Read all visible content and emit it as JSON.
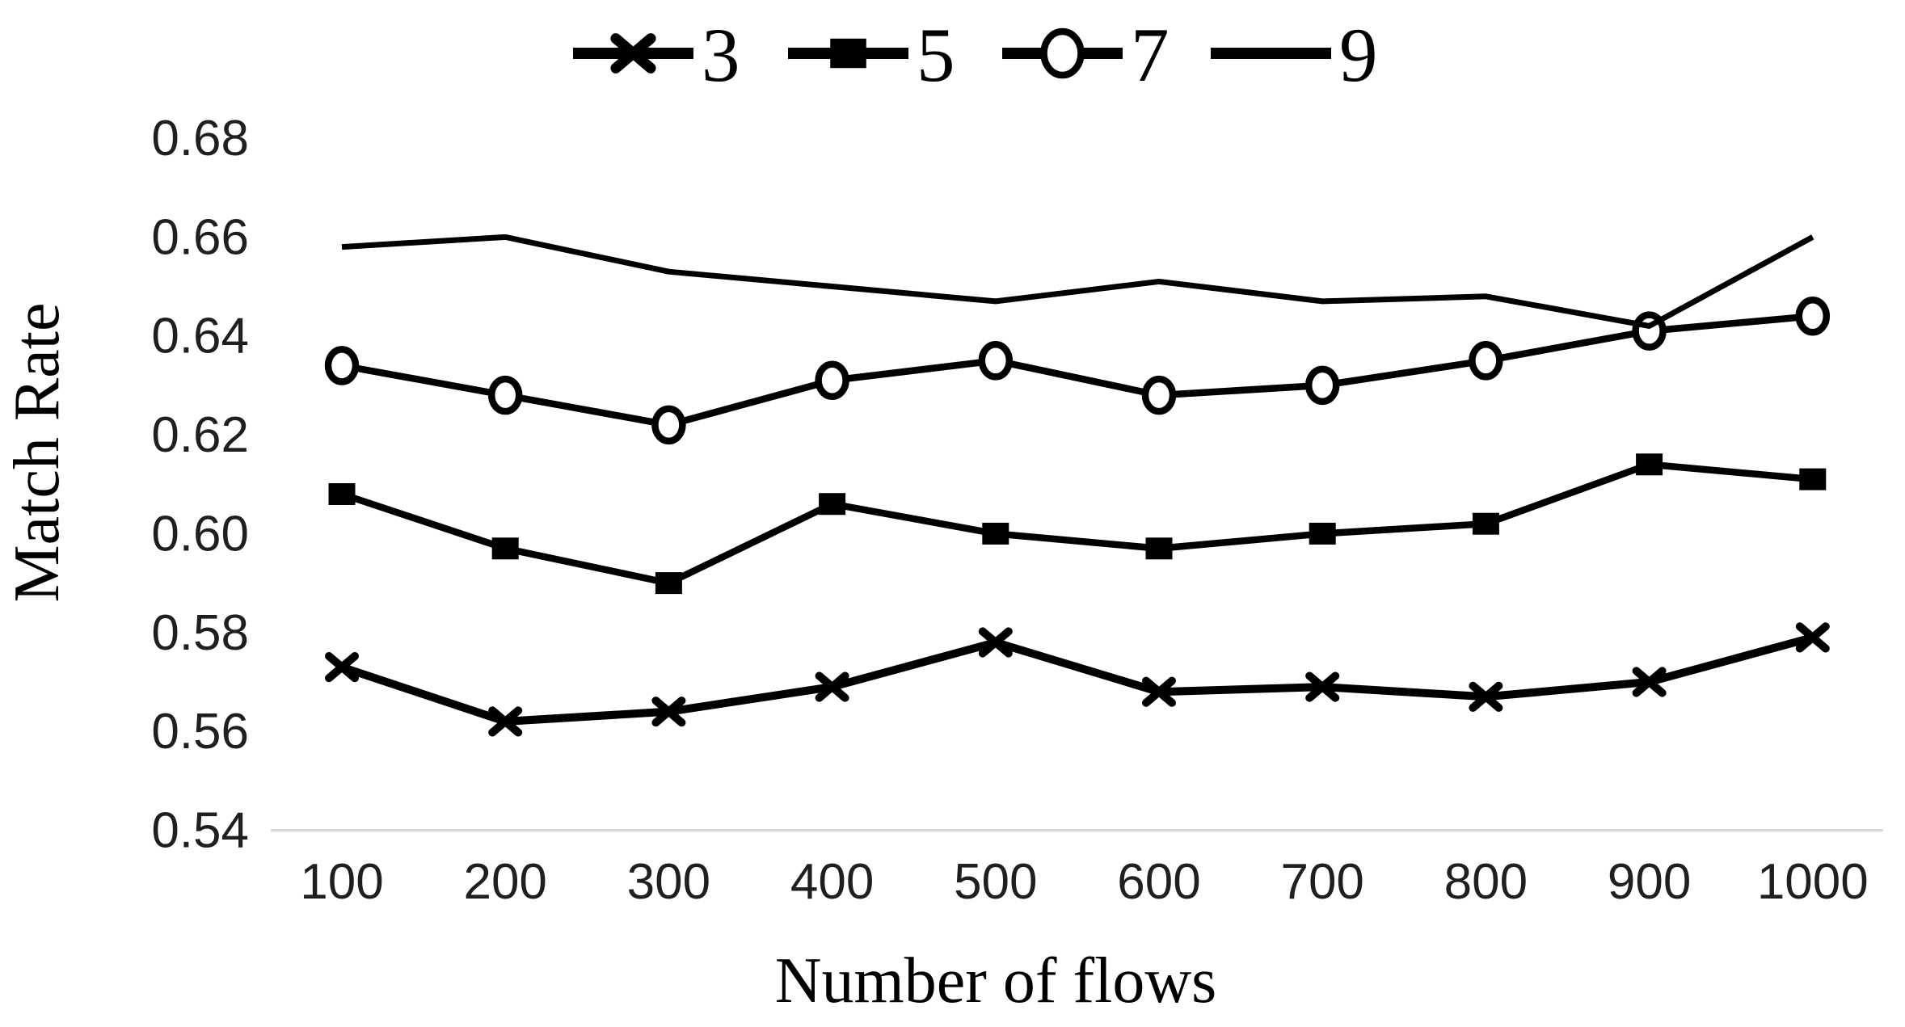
{
  "chart_data": {
    "type": "line",
    "title": "",
    "xlabel": "Number of flows",
    "ylabel": "Match Rate",
    "x": [
      100,
      200,
      300,
      400,
      500,
      600,
      700,
      800,
      900,
      1000
    ],
    "ylim": [
      0.54,
      0.68
    ],
    "ytick_step": 0.02,
    "ytick_decimals": 2,
    "grid": false,
    "legend_position": "top",
    "series": [
      {
        "name": "3",
        "marker": "x",
        "values": [
          0.573,
          0.562,
          0.564,
          0.569,
          0.578,
          0.568,
          0.569,
          0.567,
          0.57,
          0.579
        ]
      },
      {
        "name": "5",
        "marker": "square-filled",
        "values": [
          0.608,
          0.597,
          0.59,
          0.606,
          0.6,
          0.597,
          0.6,
          0.602,
          0.614,
          0.611
        ]
      },
      {
        "name": "7",
        "marker": "circle-open",
        "values": [
          0.634,
          0.628,
          0.622,
          0.631,
          0.635,
          0.628,
          0.63,
          0.635,
          0.641,
          0.644
        ]
      },
      {
        "name": "9",
        "marker": "none",
        "values": [
          0.658,
          0.66,
          0.653,
          0.65,
          0.647,
          0.651,
          0.647,
          0.648,
          0.642,
          0.66
        ]
      }
    ],
    "colors": {
      "series_line": "#000000",
      "axis_baseline": "#d9d9d9",
      "tick_text": "#1f1f1f",
      "title_text": "#000000",
      "marker_open_fill": "#ffffff"
    }
  }
}
